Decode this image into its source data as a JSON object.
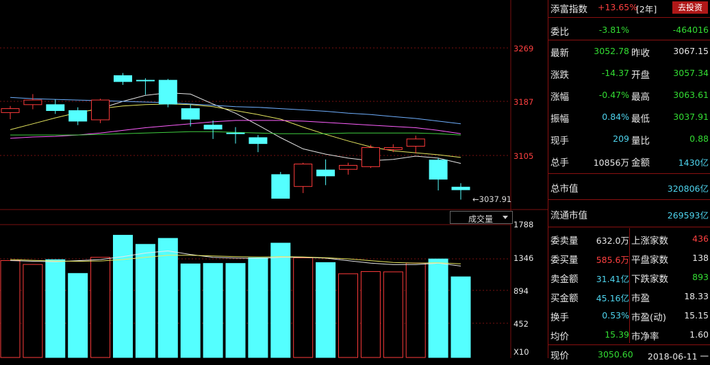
{
  "chart_data": {
    "type": "candlestick",
    "price_axis_ticks": [
      "3269",
      "3187",
      "3105"
    ],
    "low_marker": "3037.91",
    "volume_axis_ticks": [
      "1788",
      "1346",
      "894",
      "452"
    ],
    "volume_multiplier": "X10",
    "volume_selector": "成交量",
    "candles": [
      {
        "o": 3170,
        "c": 3176,
        "h": 3180,
        "l": 3160
      },
      {
        "o": 3182,
        "c": 3189,
        "h": 3198,
        "l": 3175
      },
      {
        "o": 3182,
        "c": 3173,
        "h": 3190,
        "l": 3168
      },
      {
        "o": 3173,
        "c": 3157,
        "h": 3178,
        "l": 3151
      },
      {
        "o": 3159,
        "c": 3189,
        "h": 3191,
        "l": 3154
      },
      {
        "o": 3226,
        "c": 3217,
        "h": 3230,
        "l": 3212
      },
      {
        "o": 3219,
        "c": 3218,
        "h": 3222,
        "l": 3197
      },
      {
        "o": 3219,
        "c": 3183,
        "h": 3221,
        "l": 3178
      },
      {
        "o": 3176,
        "c": 3160,
        "h": 3182,
        "l": 3149
      },
      {
        "o": 3151,
        "c": 3145,
        "h": 3158,
        "l": 3130
      },
      {
        "o": 3139,
        "c": 3138,
        "h": 3148,
        "l": 3123
      },
      {
        "o": 3132,
        "c": 3123,
        "h": 3136,
        "l": 3110
      },
      {
        "o": 3076,
        "c": 3040,
        "h": 3080,
        "l": 3040
      },
      {
        "o": 3058,
        "c": 3092,
        "h": 3094,
        "l": 3048
      },
      {
        "o": 3083,
        "c": 3074,
        "h": 3099,
        "l": 3060
      },
      {
        "o": 3084,
        "c": 3090,
        "h": 3094,
        "l": 3076
      },
      {
        "o": 3088,
        "c": 3117,
        "h": 3121,
        "l": 3086
      },
      {
        "o": 3114,
        "c": 3117,
        "h": 3122,
        "l": 3110
      },
      {
        "o": 3119,
        "c": 3130,
        "h": 3135,
        "l": 3108
      },
      {
        "o": 3098,
        "c": 3069,
        "h": 3101,
        "l": 3052
      },
      {
        "o": 3057,
        "c": 3053,
        "h": 3063,
        "l": 3038
      }
    ],
    "ma_series": [
      {
        "color": "#e8e8e8",
        "values": [
          null,
          null,
          null,
          null,
          3176,
          3187,
          3196,
          3200,
          3198,
          3183,
          3169,
          3151,
          3132,
          3115,
          3107,
          3101,
          3097,
          3099,
          3104,
          3101,
          3093
        ]
      },
      {
        "color": "#e8e860",
        "values": [
          3144,
          3153,
          3162,
          3170,
          3176,
          3180,
          3182,
          3183,
          3182,
          3179,
          3173,
          3167,
          3160,
          3148,
          3137,
          3127,
          3118,
          3112,
          3109,
          3106,
          3102
        ]
      },
      {
        "color": "#ff60ff",
        "values": [
          3131,
          3133,
          3134,
          3136,
          3139,
          3143,
          3147,
          3150,
          3153,
          3156,
          3158,
          3158,
          3158,
          3157,
          3155,
          3153,
          3151,
          3149,
          3147,
          3143,
          3138
        ]
      },
      {
        "color": "#40d040",
        "values": [
          3136,
          3136,
          3136,
          3136,
          3137,
          3138,
          3139,
          3140,
          3141,
          3141,
          3140,
          3139,
          3138,
          3138,
          3138,
          3139,
          3139,
          3139,
          3139,
          3138,
          3136
        ]
      },
      {
        "color": "#70b0ff",
        "values": [
          3193,
          3191,
          3190,
          3189,
          3188,
          3187,
          3186,
          3185,
          3183,
          3181,
          3179,
          3178,
          3176,
          3174,
          3172,
          3169,
          3167,
          3164,
          3161,
          3157,
          3153
        ]
      }
    ],
    "volumes": [
      1346,
      1292,
      1358,
      1167,
      1391,
      1698,
      1571,
      1654,
      1300,
      1306,
      1306,
      1384,
      1588,
      1384,
      1318,
      1162,
      1193,
      1189,
      1311,
      1368,
      1120
    ],
    "vol_ma_series": [
      {
        "color": "#e8e8e8",
        "values": [
          1346,
          1336,
          1330,
          1345,
          1360,
          1400,
          1450,
          1480,
          1430,
          1390,
          1380,
          1375,
          1390,
          1390,
          1380,
          1345,
          1310,
          1290,
          1290,
          1310,
          1270
        ]
      },
      {
        "color": "#e8e860",
        "values": [
          1360,
          1350,
          1340,
          1335,
          1340,
          1360,
          1390,
          1420,
          1420,
          1410,
          1400,
          1395,
          1400,
          1395,
          1385,
          1370,
          1345,
          1320,
          1310,
          1315,
          1300
        ]
      }
    ]
  },
  "panel": {
    "title": {
      "label": "添富指数",
      "change": "+13.65%",
      "period": "[2年]",
      "button": "去投资"
    },
    "weibi": {
      "label": "委比",
      "pct": "-3.81%",
      "diff": "-464016"
    },
    "quotes": [
      {
        "l1": "最新",
        "v1": "3052.78",
        "c1": "green",
        "l2": "昨收",
        "v2": "3067.15",
        "c2": "white"
      },
      {
        "l1": "涨跌",
        "v1": "-14.37",
        "c1": "green",
        "l2": "开盘",
        "v2": "3057.34",
        "c2": "green"
      },
      {
        "l1": "涨幅",
        "v1": "-0.47%",
        "c1": "green",
        "l2": "最高",
        "v2": "3063.61",
        "c2": "green"
      },
      {
        "l1": "振幅",
        "v1": "0.84%",
        "c1": "cyan",
        "l2": "最低",
        "v2": "3037.91",
        "c2": "green"
      },
      {
        "l1": "现手",
        "v1": "209",
        "c1": "cyan",
        "l2": "量比",
        "v2": "0.88",
        "c2": "green"
      },
      {
        "l1": "总手",
        "v1": "10856万",
        "c1": "white",
        "l2": "金额",
        "v2": "1430亿",
        "c2": "cyan"
      }
    ],
    "market_cap": [
      {
        "label": "总市值",
        "value": "320806亿"
      },
      {
        "label": "流通市值",
        "value": "269593亿"
      }
    ],
    "stats": [
      {
        "l1": "委卖量",
        "v1": "632.0万",
        "c1": "white",
        "l2": "上涨家数",
        "v2": "436",
        "c2": "red"
      },
      {
        "l1": "委买量",
        "v1": "585.6万",
        "c1": "red",
        "l2": "平盘家数",
        "v2": "138",
        "c2": "white"
      },
      {
        "l1": "卖金额",
        "v1": "31.41亿",
        "c1": "cyan",
        "l2": "下跌家数",
        "v2": "893",
        "c2": "green"
      },
      {
        "l1": "买金额",
        "v1": "45.16亿",
        "c1": "cyan",
        "l2": "市盈",
        "v2": "18.33",
        "c2": "white"
      },
      {
        "l1": "换手",
        "v1": "0.53%",
        "c1": "cyan",
        "l2": "市盈(动)",
        "v2": "15.15",
        "c2": "white"
      },
      {
        "l1": "均价",
        "v1": "15.39",
        "c1": "green",
        "l2": "市净率",
        "v2": "1.60",
        "c2": "white"
      }
    ],
    "footer": {
      "label": "现价",
      "price": "3050.60",
      "date": "2018-06-11 一"
    }
  },
  "colors": {
    "up": "#ff3b3b",
    "down": "#54ffff",
    "grid": "#7a1010"
  }
}
